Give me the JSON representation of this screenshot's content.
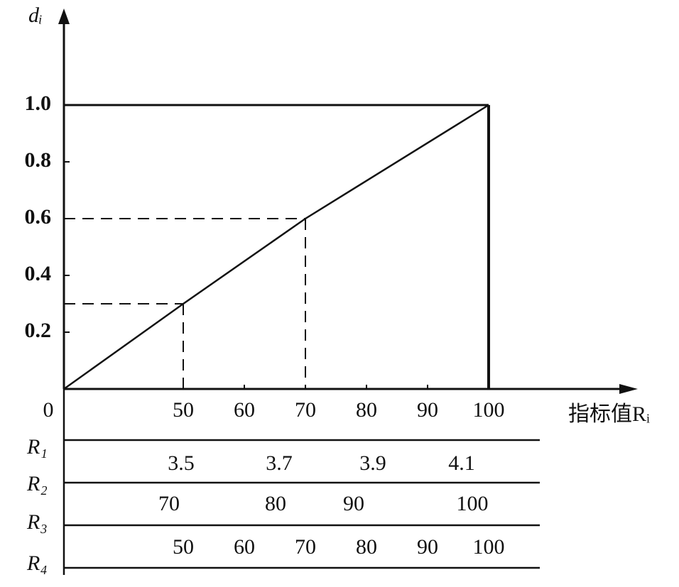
{
  "chart_data": {
    "type": "line",
    "y_label": "dᵢ",
    "x_label": "指标值Rᵢ",
    "x": [
      0,
      50,
      70,
      100
    ],
    "series": [
      {
        "color": "#111111",
        "values": [
          0,
          0.3,
          0.6,
          1
        ]
      }
    ],
    "xticks": [
      0,
      50,
      60,
      70,
      80,
      90,
      100
    ],
    "ylim": [
      0,
      1
    ],
    "yticks": [
      0.2,
      0.4,
      0.6,
      0.8,
      {
        "value": 1,
        "label": "1.0"
      }
    ],
    "table": {
      "row_labels": [
        "R₁",
        "R₂",
        "R₃",
        "R₄"
      ],
      "rows": [
        [
          3.5,
          3.7,
          3.9,
          4.1
        ],
        [
          70,
          80,
          90,
          100
        ],
        [
          50,
          60,
          70,
          80,
          90,
          100
        ]
      ]
    }
  }
}
